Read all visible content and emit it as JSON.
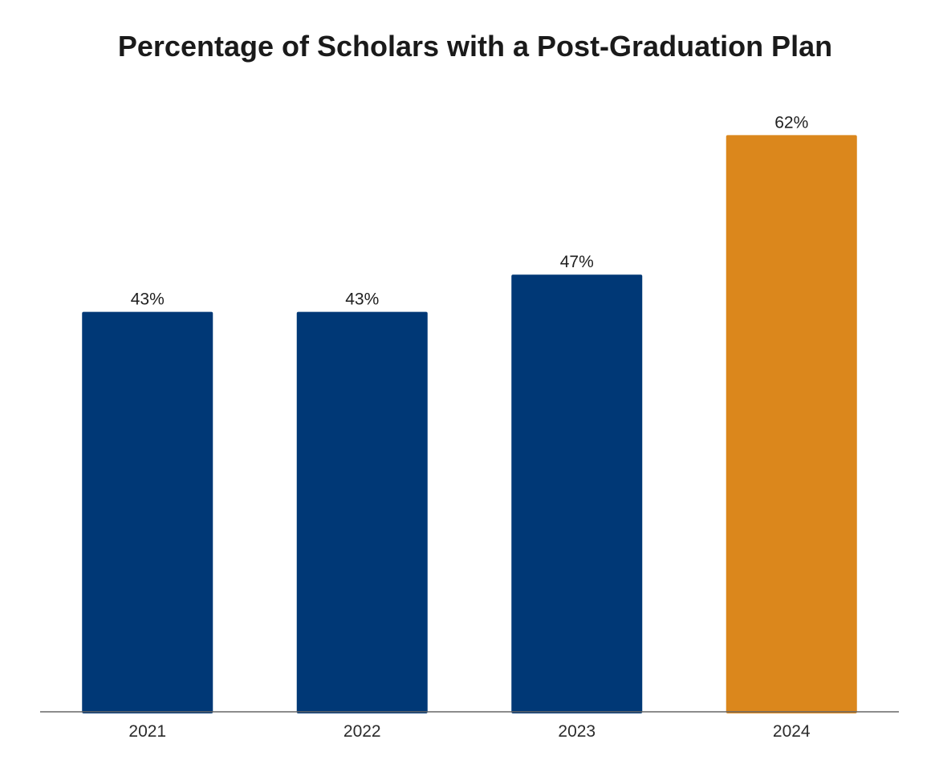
{
  "chart_data": {
    "type": "bar",
    "title": "Percentage of Scholars with a Post-Graduation Plan",
    "categories": [
      "2021",
      "2022",
      "2023",
      "2024"
    ],
    "values": [
      43,
      43,
      47,
      62
    ],
    "value_labels": [
      "43%",
      "43%",
      "47%",
      "62%"
    ],
    "ylim": [
      0,
      66
    ],
    "grid": false,
    "legend": "none",
    "colors": [
      "#003876",
      "#003876",
      "#003876",
      "#DB871C"
    ],
    "axis_color": "#666666"
  }
}
